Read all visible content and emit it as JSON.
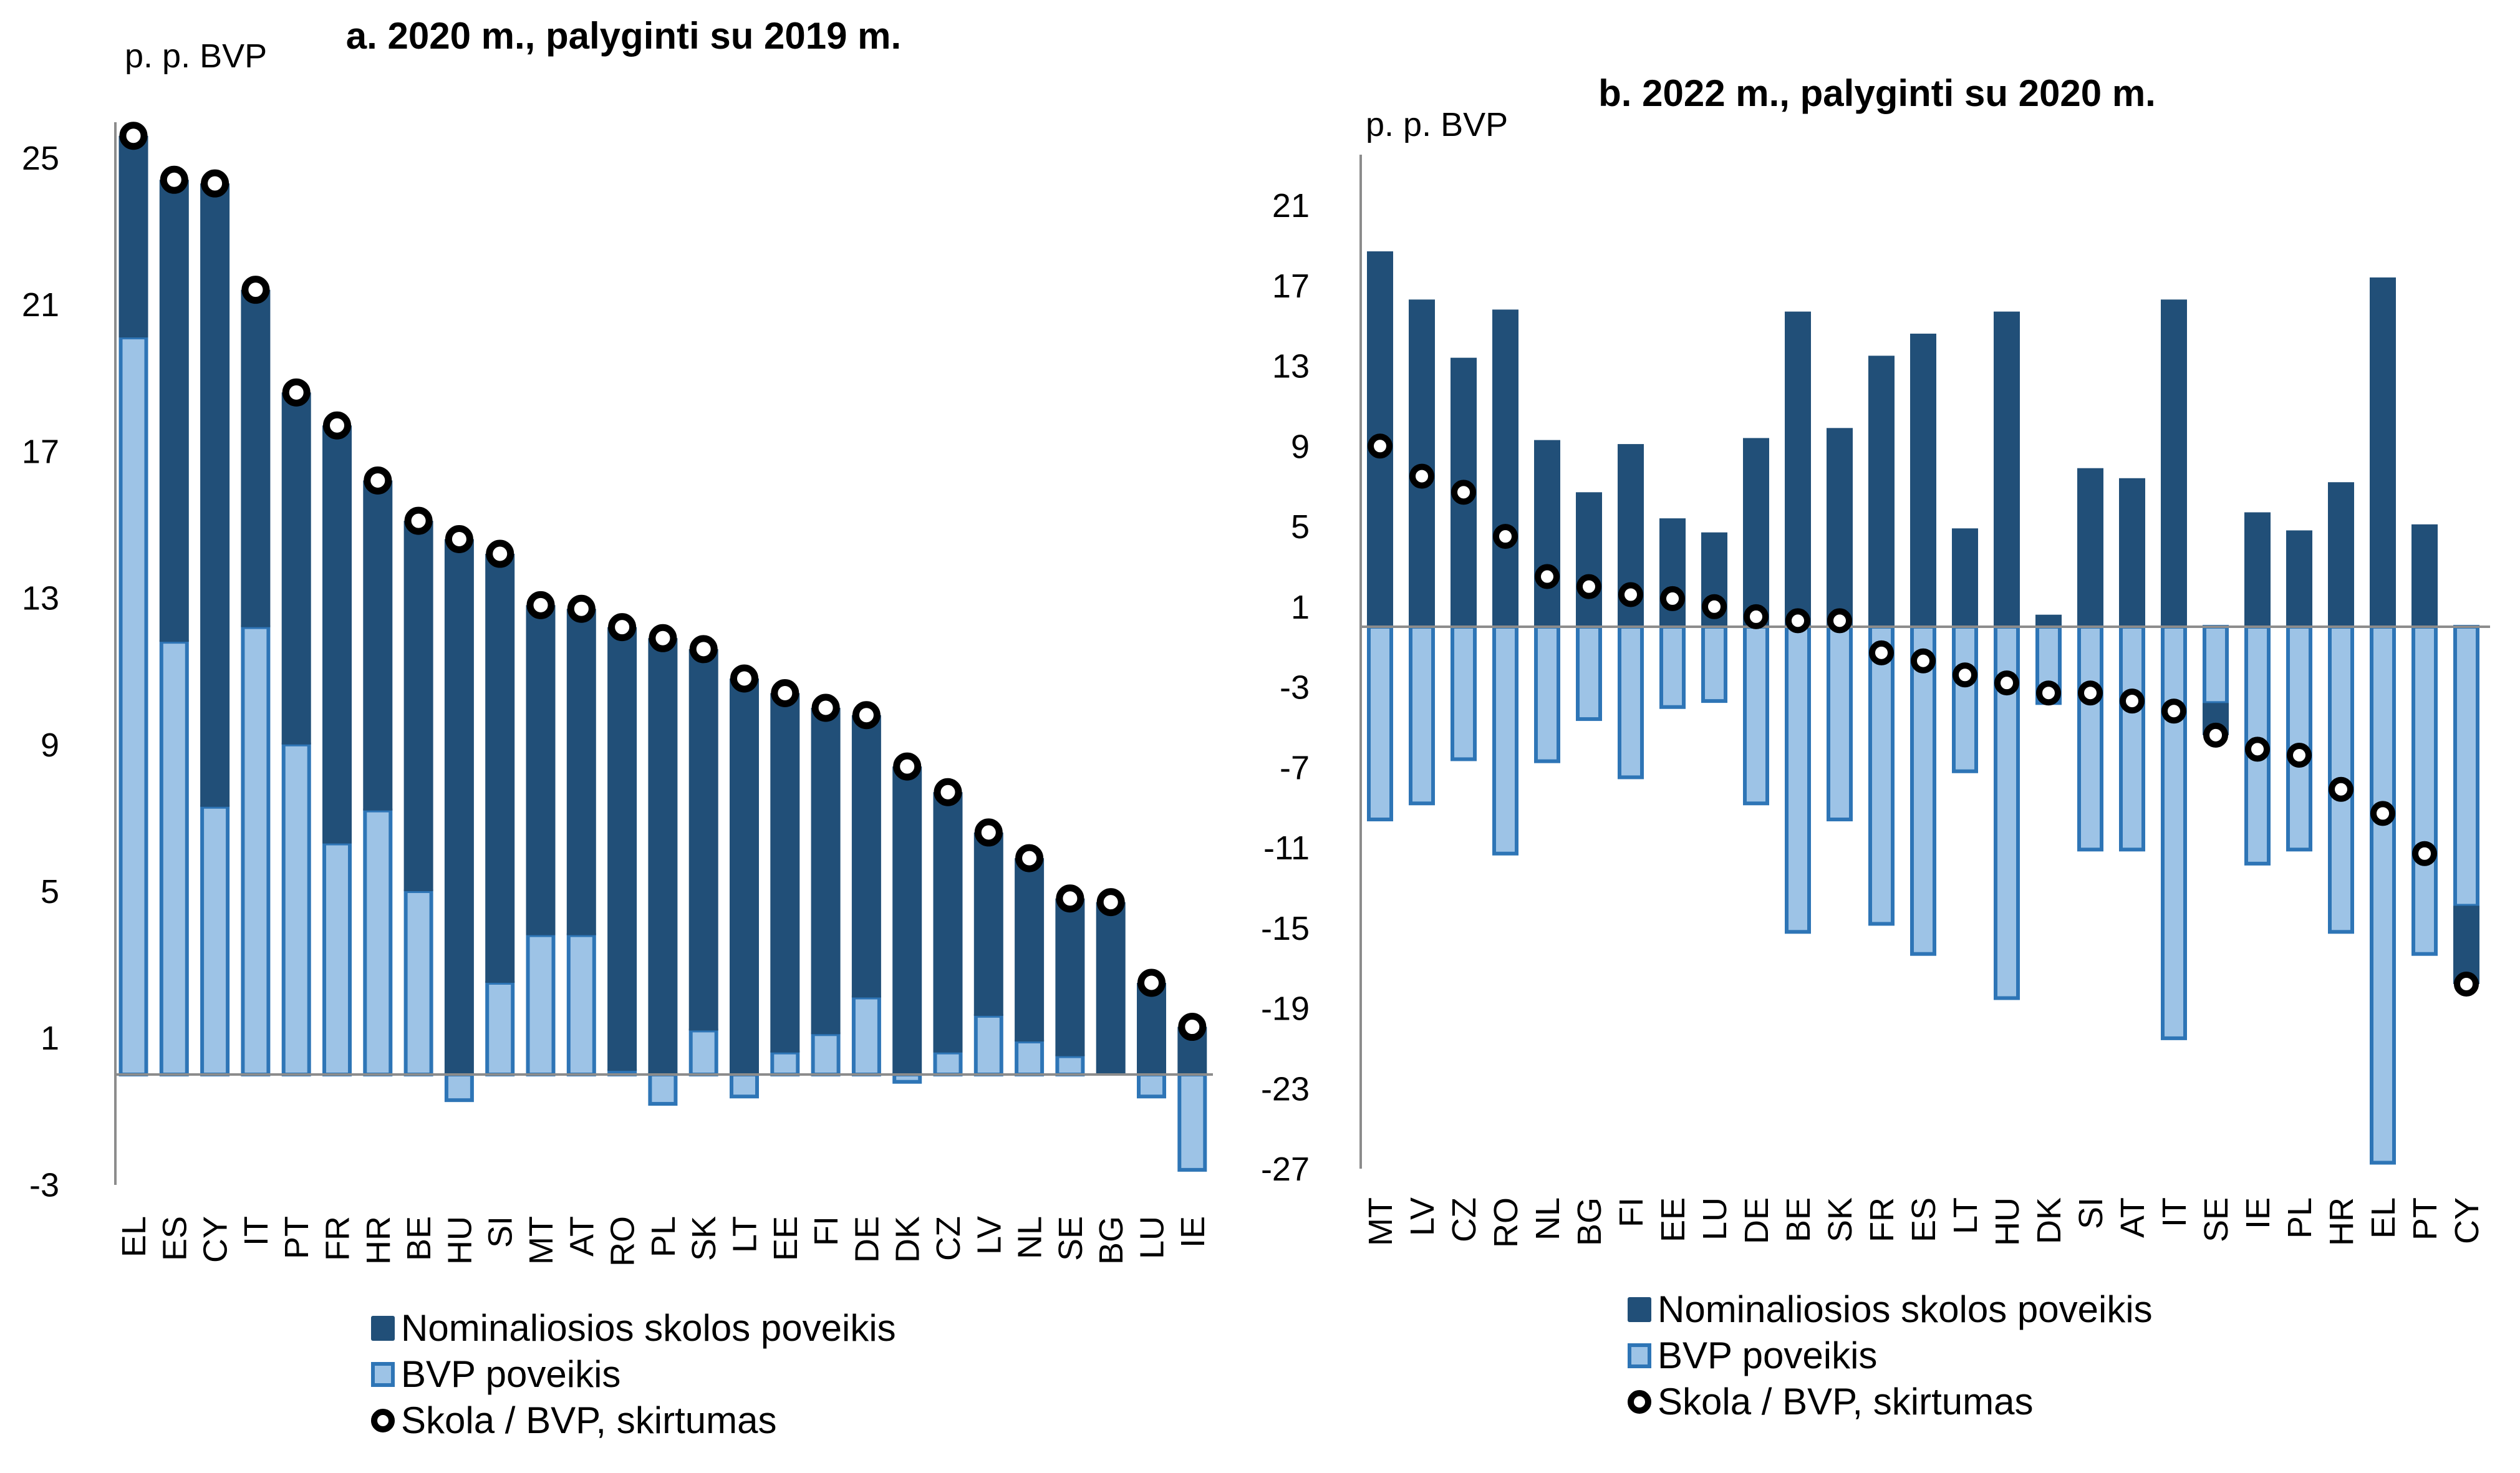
{
  "colors": {
    "nominal": "#214f78",
    "gdp_fill": "#9dc3e6",
    "gdp_border": "#2e75b6",
    "marker_stroke": "#000000",
    "marker_fill": "#ffffff",
    "axis": "#8c8c8c"
  },
  "chart_data": [
    {
      "type": "bar",
      "stacked": true,
      "title": "a. 2020 m., palyginti su 2019 m.",
      "ylabel": "p. p. BVP",
      "xlabel": "",
      "ylim": [
        -3,
        26
      ],
      "yticks": [
        25,
        21,
        17,
        13,
        9,
        5,
        1,
        -3
      ],
      "grid": false,
      "legend_position": "bottom",
      "categories": [
        "EL",
        "ES",
        "CY",
        "IT",
        "PT",
        "FR",
        "HR",
        "BE",
        "HU",
        "SI",
        "MT",
        "AT",
        "RO",
        "PL",
        "SK",
        "LT",
        "EE",
        "FI",
        "DE",
        "DK",
        "CZ",
        "LV",
        "NL",
        "SE",
        "BG",
        "LU",
        "IE"
      ],
      "series": [
        {
          "name": "Nominaliosios skolos poveikis",
          "kind": "bar",
          "values": [
            5.5,
            12.6,
            17.0,
            9.2,
            9.6,
            11.4,
            9.0,
            10.1,
            14.6,
            11.7,
            9.0,
            8.9,
            12.1,
            11.9,
            10.4,
            10.8,
            9.8,
            8.9,
            7.7,
            8.4,
            7.1,
            5.0,
            5.0,
            4.3,
            4.7,
            2.5,
            1.3
          ]
        },
        {
          "name": "BVP poveikis",
          "kind": "bar",
          "values": [
            20.1,
            11.8,
            7.3,
            12.2,
            9.0,
            6.3,
            7.2,
            5.0,
            -0.7,
            2.5,
            3.8,
            3.8,
            0.1,
            -0.8,
            1.2,
            -0.6,
            0.6,
            1.1,
            2.1,
            -0.2,
            0.6,
            1.6,
            0.9,
            0.5,
            0.0,
            -0.6,
            -2.6
          ]
        },
        {
          "name": "Skola / BVP, skirtumas",
          "kind": "marker",
          "values": [
            25.6,
            24.4,
            24.3,
            21.4,
            18.6,
            17.7,
            16.2,
            15.1,
            14.6,
            14.2,
            12.8,
            12.7,
            12.2,
            11.9,
            11.6,
            10.8,
            10.4,
            10.0,
            9.8,
            8.4,
            7.7,
            6.6,
            5.9,
            4.8,
            4.7,
            2.5,
            1.3
          ]
        }
      ]
    },
    {
      "type": "bar",
      "stacked": true,
      "title": "b. 2022 m., palyginti su 2020 m.",
      "ylabel": "p. p. BVP",
      "xlabel": "",
      "ylim": [
        -27,
        24
      ],
      "yticks": [
        21,
        17,
        13,
        9,
        5,
        1,
        -3,
        -7,
        -11,
        -15,
        -19,
        -23,
        -27
      ],
      "grid": false,
      "legend_position": "bottom",
      "categories": [
        "MT",
        "LV",
        "CZ",
        "RO",
        "NL",
        "BG",
        "FI",
        "EE",
        "LU",
        "DE",
        "BE",
        "SK",
        "FR",
        "ES",
        "LT",
        "HU",
        "DK",
        "SI",
        "AT",
        "IT",
        "SE",
        "IE",
        "PL",
        "HR",
        "EL",
        "PT",
        "CY"
      ],
      "series": [
        {
          "name": "Nominaliosios skolos poveikis",
          "kind": "bar",
          "values": [
            18.7,
            16.3,
            13.4,
            15.8,
            9.3,
            6.7,
            9.1,
            5.4,
            4.7,
            9.4,
            15.7,
            9.9,
            13.5,
            14.6,
            4.9,
            15.7,
            0.6,
            7.9,
            7.4,
            16.3,
            -1.6,
            5.7,
            4.8,
            7.2,
            17.4,
            5.1,
            -3.9
          ]
        },
        {
          "name": "BVP poveikis",
          "kind": "bar",
          "values": [
            -9.6,
            -8.8,
            -6.6,
            -11.3,
            -6.7,
            -4.6,
            -7.5,
            -4.0,
            -3.7,
            -8.8,
            -15.2,
            -9.6,
            -14.8,
            -16.3,
            -7.2,
            -18.5,
            -3.8,
            -11.1,
            -11.1,
            -20.5,
            -3.8,
            -11.8,
            -11.1,
            -15.2,
            -26.7,
            -16.3,
            -13.9
          ]
        },
        {
          "name": "Skola / BVP, skirtumas",
          "kind": "marker",
          "values": [
            9.0,
            7.5,
            6.7,
            4.5,
            2.5,
            2.0,
            1.6,
            1.4,
            1.0,
            0.5,
            0.3,
            0.3,
            -1.3,
            -1.7,
            -2.4,
            -2.8,
            -3.3,
            -3.3,
            -3.7,
            -4.2,
            -5.4,
            -6.1,
            -6.4,
            -8.1,
            -9.3,
            -11.3,
            -17.8
          ]
        }
      ]
    }
  ],
  "legend": {
    "items": [
      {
        "label": "Nominaliosios skolos poveikis",
        "icon": "dark-square"
      },
      {
        "label": "BVP poveikis",
        "icon": "light-square"
      },
      {
        "label": "Skola / BVP, skirtumas",
        "icon": "ring-marker"
      }
    ]
  }
}
